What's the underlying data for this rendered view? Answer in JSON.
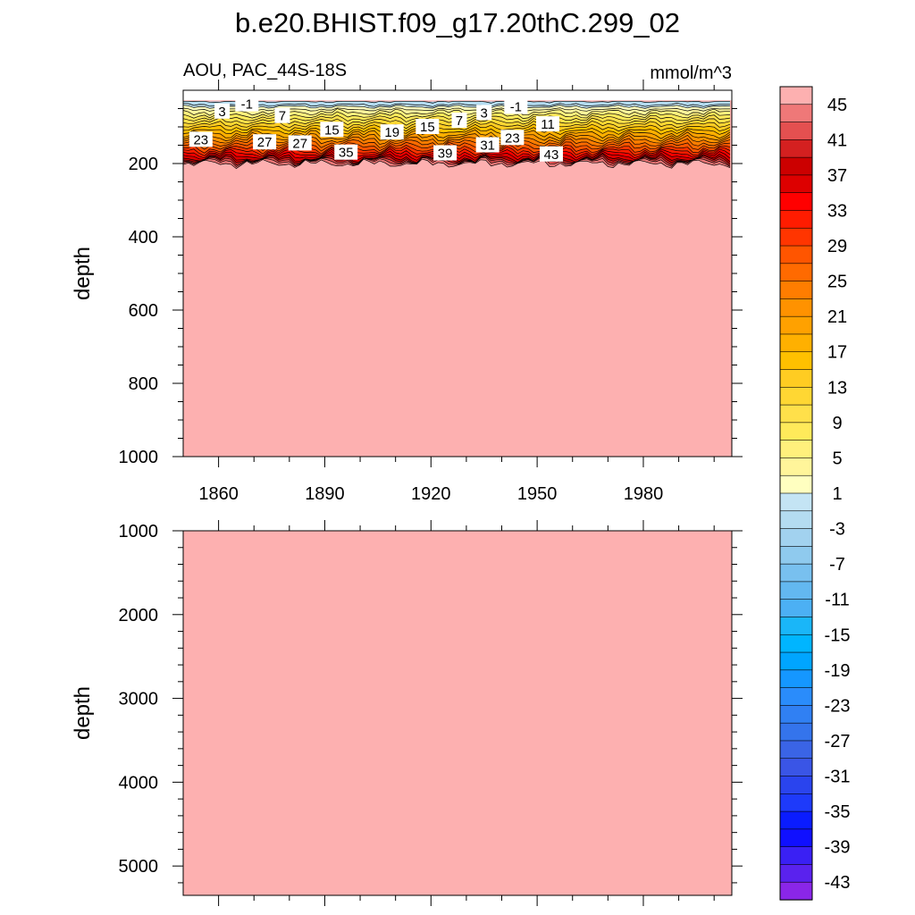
{
  "figure": {
    "title": "b.e20.BHIST.f09_g17.20thC.299_02",
    "subtitle_left": "AOU, PAC_44S-18S",
    "subtitle_right": "mmol/m^3"
  },
  "chart_data": [
    {
      "type": "heatmap",
      "panel": "upper",
      "title": "b.e20.BHIST.f09_g17.20thC.299_02",
      "subtitle_left": "AOU, PAC_44S-18S",
      "subtitle_right": "mmol/m^3",
      "xlabel": "",
      "ylabel": "depth",
      "xlim": [
        1850,
        2005
      ],
      "ylim": [
        0,
        1000
      ],
      "y_reversed": true,
      "x_ticks": [
        1860,
        1890,
        1920,
        1950,
        1980
      ],
      "x_tick_labels": [
        "1860",
        "1890",
        "1920",
        "1950",
        "1980"
      ],
      "y_ticks": [
        200,
        400,
        600,
        800,
        1000
      ],
      "y_tick_labels": [
        "200",
        "400",
        "600",
        "800",
        "1000"
      ],
      "y_minor_step": 50,
      "x_minor_step": 10,
      "surface_depth": 30,
      "description_of_field": "AOU rises from about -3 near 30 m to about 45 at ~200 m, then stays above 45 down to 1000 m",
      "profile_depths": [
        30,
        40,
        45,
        60,
        85,
        120,
        160,
        185,
        195,
        205
      ],
      "profile_values": [
        -3,
        -1,
        1,
        5,
        11,
        19,
        29,
        37,
        43,
        47
      ],
      "contour_labels": [
        {
          "x": 1861,
          "y": 58,
          "value": "3"
        },
        {
          "x": 1868,
          "y": 38,
          "value": "-1"
        },
        {
          "x": 1878,
          "y": 70,
          "value": "7"
        },
        {
          "x": 1855,
          "y": 135,
          "value": "23"
        },
        {
          "x": 1873,
          "y": 142,
          "value": "27"
        },
        {
          "x": 1883,
          "y": 145,
          "value": "27"
        },
        {
          "x": 1892,
          "y": 108,
          "value": "15"
        },
        {
          "x": 1896,
          "y": 170,
          "value": "35"
        },
        {
          "x": 1909,
          "y": 115,
          "value": "19"
        },
        {
          "x": 1919,
          "y": 100,
          "value": "15"
        },
        {
          "x": 1924,
          "y": 172,
          "value": "39"
        },
        {
          "x": 1928,
          "y": 83,
          "value": "7"
        },
        {
          "x": 1935,
          "y": 62,
          "value": "3"
        },
        {
          "x": 1936,
          "y": 150,
          "value": "31"
        },
        {
          "x": 1943,
          "y": 130,
          "value": "23"
        },
        {
          "x": 1944,
          "y": 45,
          "value": "-1"
        },
        {
          "x": 1953,
          "y": 93,
          "value": "11"
        },
        {
          "x": 1954,
          "y": 175,
          "value": "43"
        }
      ]
    },
    {
      "type": "heatmap",
      "panel": "lower",
      "xlabel": "",
      "ylabel": "depth",
      "xlim": [
        1850,
        2005
      ],
      "ylim": [
        1000,
        5350
      ],
      "y_reversed": true,
      "y_ticks": [
        1000,
        2000,
        3000,
        4000,
        5000
      ],
      "y_tick_labels": [
        "1000",
        "2000",
        "3000",
        "4000",
        "5000"
      ],
      "y_minor_step": 200,
      "x_ticks": [
        1860,
        1890,
        1920,
        1950,
        1980
      ],
      "field_value": ">45"
    }
  ],
  "colorbar": {
    "levels": [
      -45,
      -43,
      -41,
      -39,
      -37,
      -35,
      -33,
      -31,
      -29,
      -27,
      -25,
      -23,
      -21,
      -19,
      -17,
      -15,
      -13,
      -11,
      -9,
      -7,
      -5,
      -3,
      -1,
      1,
      3,
      5,
      7,
      9,
      11,
      13,
      15,
      17,
      19,
      21,
      23,
      25,
      27,
      29,
      31,
      33,
      35,
      37,
      39,
      41,
      43,
      45
    ],
    "labels": [
      "45",
      "41",
      "37",
      "33",
      "29",
      "25",
      "21",
      "17",
      "13",
      "9",
      "5",
      "1",
      "-3",
      "-7",
      "-11",
      "-15",
      "-19",
      "-23",
      "-27",
      "-31",
      "-35",
      "-39",
      "-43"
    ],
    "colors_top_to_bottom": [
      "#fdb0b0",
      "#ef7878",
      "#e45050",
      "#d42020",
      "#cc0000",
      "#dd0000",
      "#ff0000",
      "#ff1c00",
      "#ff3500",
      "#ff5500",
      "#ff6a00",
      "#ff7d00",
      "#ff9200",
      "#ffa100",
      "#ffb000",
      "#ffc000",
      "#ffcc22",
      "#ffd733",
      "#ffe04a",
      "#ffea5a",
      "#fff07c",
      "#fff59a",
      "#ffffc0",
      "#c4e4f4",
      "#b4dcf1",
      "#a2d2ef",
      "#8fcaee",
      "#78c0ef",
      "#63b8f0",
      "#4cb0f4",
      "#1ab6f8",
      "#00b5ff",
      "#00a5ff",
      "#1597ff",
      "#2a8cfb",
      "#3080f3",
      "#3474ec",
      "#3a64e6",
      "#3a55e6",
      "#2a44ee",
      "#1e3afa",
      "#0a1cff",
      "#1010ff",
      "#3a20f4",
      "#5a22ee",
      "#8a26e8"
    ]
  }
}
